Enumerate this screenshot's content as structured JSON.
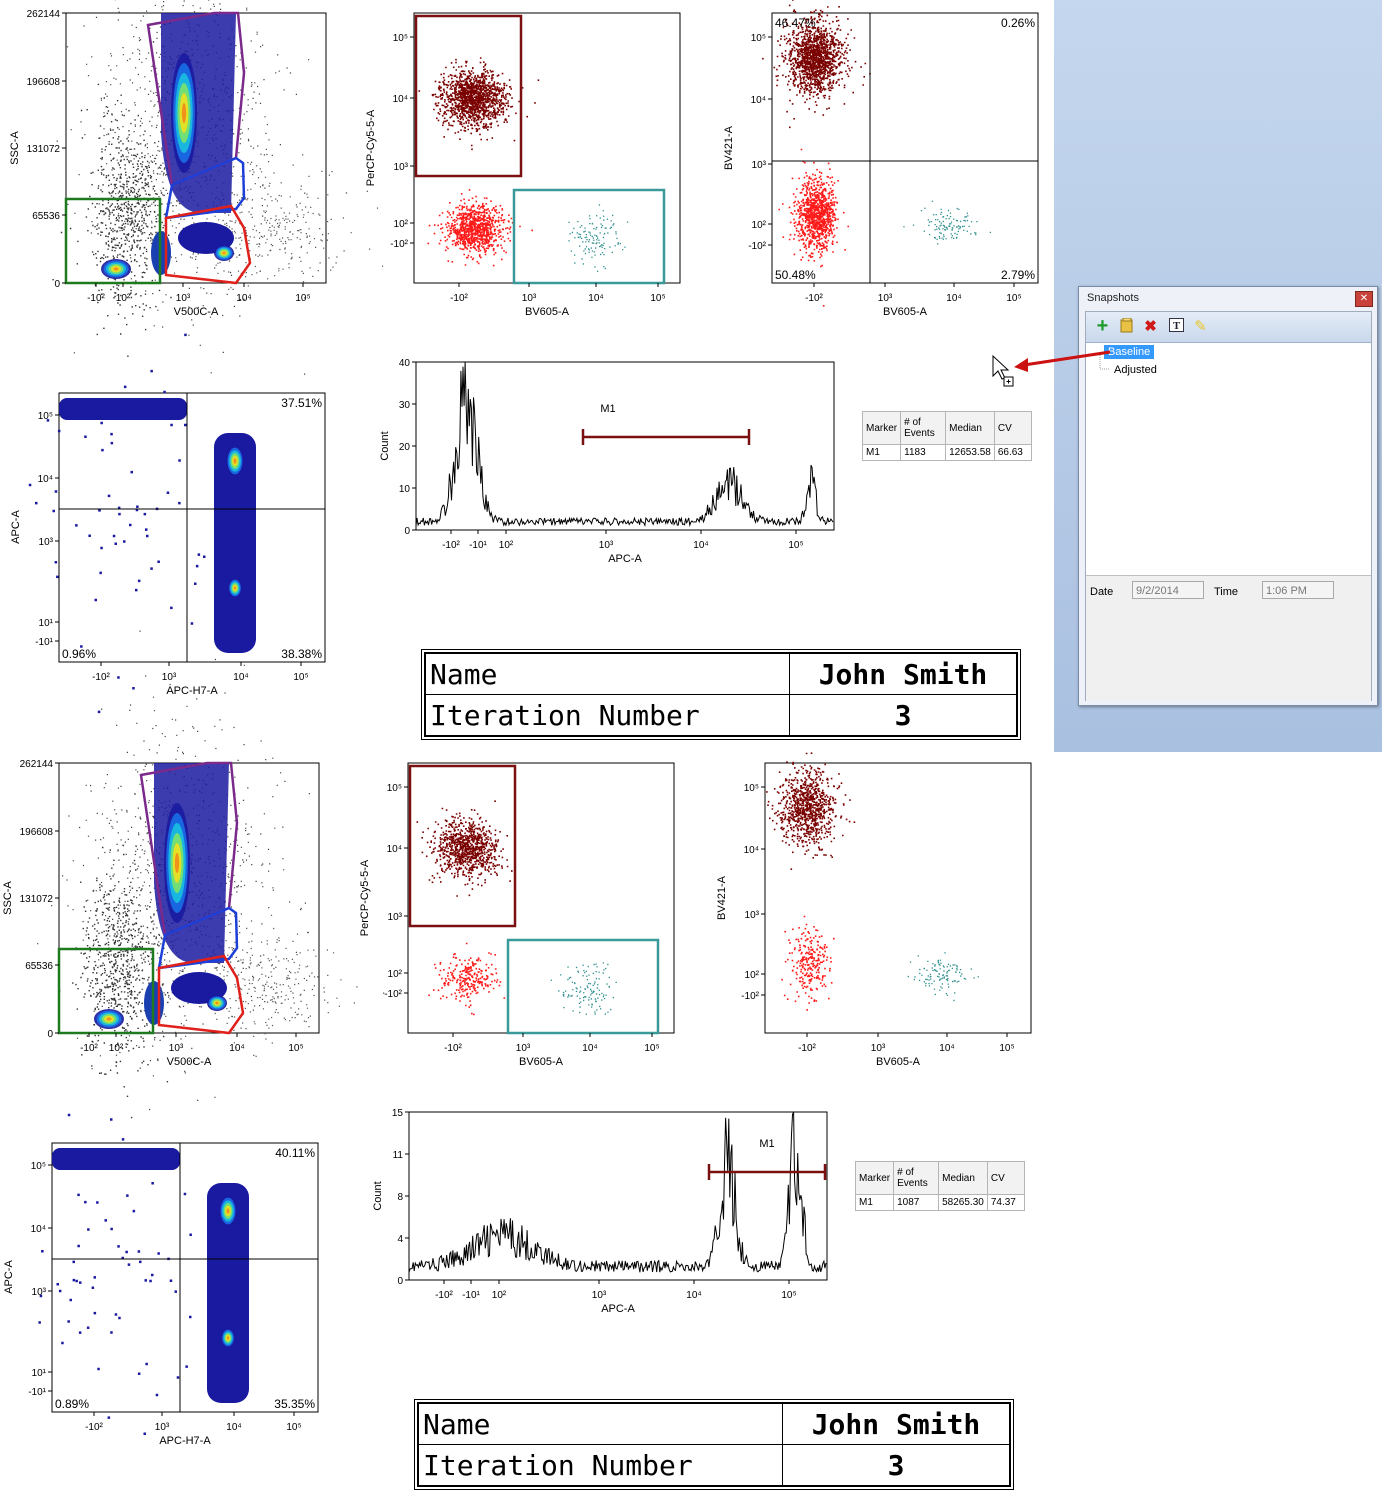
{
  "colors": {
    "gate_green": "#1f7a1f",
    "gate_purple": "#7b2a8c",
    "gate_blue": "#1c3fd8",
    "gate_red": "#e0201b",
    "gate_darkred": "#7a1010",
    "gate_teal": "#3a9a9a",
    "pop_darkred": "#7a0000",
    "pop_red": "#ff1a1a",
    "pop_teal": "#2f8f8f",
    "pop_blue": "#1a1aa0",
    "marker": "#7a1010"
  },
  "snapshots": {
    "title": "Snapshots",
    "toolbar_icons": [
      "add-icon",
      "folder-icon",
      "delete-icon",
      "rename-icon",
      "pencil-icon"
    ],
    "items": [
      "Baseline",
      "Adjusted"
    ],
    "selected": "Baseline",
    "date_label": "Date",
    "date_value": "9/2/2014",
    "time_label": "Time",
    "time_value": "1:06 PM"
  },
  "panels": [
    {
      "ssc_plot": {
        "ylabel": "SSC-A",
        "xlabel": "V500C-A",
        "yticks": [
          "262144",
          "196608",
          "131072",
          "65536",
          "0"
        ],
        "xticks": [
          "-10²",
          "10²",
          "10³",
          "10⁴",
          "10⁵"
        ]
      },
      "percp_plot": {
        "ylabel": "PerCP-Cy5-5-A",
        "xlabel": "BV605-A",
        "yticks": [
          "10⁵",
          "10⁴",
          "10³",
          "10²",
          "-10²"
        ],
        "xticks": [
          "-10²",
          "10³",
          "10⁴",
          "10⁵"
        ]
      },
      "bv421_plot": {
        "ylabel": "BV421-A",
        "xlabel": "BV605-A",
        "yticks": [
          "10⁵",
          "10⁴",
          "10³",
          "10²",
          "-10²"
        ],
        "xticks": [
          "-10²",
          "10³",
          "10⁴",
          "10⁵"
        ],
        "quadrants": [
          "46.47%",
          "0.26%",
          "50.48%",
          "2.79%"
        ]
      },
      "apc_plot": {
        "ylabel": "APC-A",
        "xlabel": "APC-H7-A",
        "yticks": [
          "10⁵",
          "10⁴",
          "10³",
          "10¹",
          "-10¹"
        ],
        "xticks": [
          "-10²",
          "10³",
          "10⁴",
          "10⁵"
        ],
        "quadrants": [
          "",
          "37.51%",
          "0.96%",
          "38.38%"
        ]
      },
      "histogram": {
        "ylabel": "Count",
        "xlabel": "APC-A",
        "ymax": 40,
        "yticks": [
          "0",
          "10",
          "20",
          "30",
          "40"
        ],
        "xticks": [
          "-10²",
          "-10¹",
          "10²",
          "10³",
          "10⁴",
          "10⁵"
        ],
        "marker_label": "M1"
      },
      "stats": {
        "headers": [
          "Marker",
          "# of Events",
          "Median",
          "CV"
        ],
        "row": [
          "M1",
          "1183",
          "12653.58",
          "66.63"
        ]
      },
      "info": {
        "name_label": "Name",
        "name_value": "John Smith",
        "iter_label": "Iteration Number",
        "iter_value": "3"
      }
    },
    {
      "ssc_plot": {
        "ylabel": "SSC-A",
        "xlabel": "V500C-A",
        "yticks": [
          "262144",
          "196608",
          "131072",
          "65536",
          "0"
        ],
        "xticks": [
          "-10²",
          "10²",
          "10³",
          "10⁴",
          "10⁵"
        ]
      },
      "percp_plot": {
        "ylabel": "PerCP-Cy5-5-A",
        "xlabel": "BV605-A",
        "yticks": [
          "10⁵",
          "10⁴",
          "10³",
          "10²",
          "-10²"
        ],
        "xticks": [
          "-10²",
          "10³",
          "10⁴",
          "10⁵"
        ]
      },
      "bv421_plot": {
        "ylabel": "BV421-A",
        "xlabel": "BV605-A",
        "yticks": [
          "10⁵",
          "10⁴",
          "10³",
          "10²",
          "-10²"
        ],
        "xticks": [
          "-10²",
          "10³",
          "10⁴",
          "10⁵"
        ],
        "quadrants": [
          "",
          "",
          "",
          ""
        ]
      },
      "apc_plot": {
        "ylabel": "APC-A",
        "xlabel": "APC-H7-A",
        "yticks": [
          "10⁵",
          "10⁴",
          "10³",
          "10¹",
          "-10¹"
        ],
        "xticks": [
          "-10²",
          "10³",
          "10⁴",
          "10⁵"
        ],
        "quadrants": [
          "",
          "40.11%",
          "0.89%",
          "35.35%"
        ]
      },
      "histogram": {
        "ylabel": "Count",
        "xlabel": "APC-A",
        "ymax": 15,
        "yticks": [
          "0",
          "4",
          "8",
          "11",
          "15"
        ],
        "xticks": [
          "-10²",
          "-10¹",
          "10²",
          "10³",
          "10⁴",
          "10⁵"
        ],
        "marker_label": "M1"
      },
      "stats": {
        "headers": [
          "Marker",
          "# of Events",
          "Median",
          "CV"
        ],
        "row": [
          "M1",
          "1087",
          "58265.30",
          "74.37"
        ]
      },
      "info": {
        "name_label": "Name",
        "name_value": "John Smith",
        "iter_label": "Iteration Number",
        "iter_value": "3"
      }
    }
  ],
  "chart_data": [
    {
      "type": "scatter",
      "panel": 1,
      "title": "",
      "xlabel": "V500C-A",
      "ylabel": "SSC-A",
      "ylim": [
        0,
        262144
      ]
    },
    {
      "type": "scatter",
      "panel": 1,
      "title": "",
      "xlabel": "BV605-A",
      "ylabel": "PerCP-Cy5-5-A"
    },
    {
      "type": "scatter",
      "panel": 1,
      "title": "",
      "xlabel": "BV605-A",
      "ylabel": "BV421-A",
      "quadrant_percentages": {
        "upper_left": "46.47%",
        "upper_right": "0.26%",
        "lower_left": "50.48%",
        "lower_right": "2.79%"
      }
    },
    {
      "type": "scatter",
      "panel": 1,
      "title": "",
      "xlabel": "APC-H7-A",
      "ylabel": "APC-A",
      "quadrant_percentages": {
        "upper_right": "37.51%",
        "lower_left": "0.96%",
        "lower_right": "38.38%"
      }
    },
    {
      "type": "line",
      "panel": 1,
      "title": "",
      "xlabel": "APC-A",
      "ylabel": "Count",
      "ylim": [
        0,
        40
      ],
      "marker": {
        "name": "M1",
        "events": 1183,
        "median": 12653.58,
        "cv": 66.63
      }
    },
    {
      "type": "scatter",
      "panel": 2,
      "title": "",
      "xlabel": "V500C-A",
      "ylabel": "SSC-A",
      "ylim": [
        0,
        262144
      ]
    },
    {
      "type": "scatter",
      "panel": 2,
      "title": "",
      "xlabel": "BV605-A",
      "ylabel": "PerCP-Cy5-5-A"
    },
    {
      "type": "scatter",
      "panel": 2,
      "title": "",
      "xlabel": "BV605-A",
      "ylabel": "BV421-A"
    },
    {
      "type": "scatter",
      "panel": 2,
      "title": "",
      "xlabel": "APC-H7-A",
      "ylabel": "APC-A",
      "quadrant_percentages": {
        "upper_right": "40.11%",
        "lower_left": "0.89%",
        "lower_right": "35.35%"
      }
    },
    {
      "type": "line",
      "panel": 2,
      "title": "",
      "xlabel": "APC-A",
      "ylabel": "Count",
      "ylim": [
        0,
        15
      ],
      "marker": {
        "name": "M1",
        "events": 1087,
        "median": 58265.3,
        "cv": 74.37
      }
    }
  ]
}
